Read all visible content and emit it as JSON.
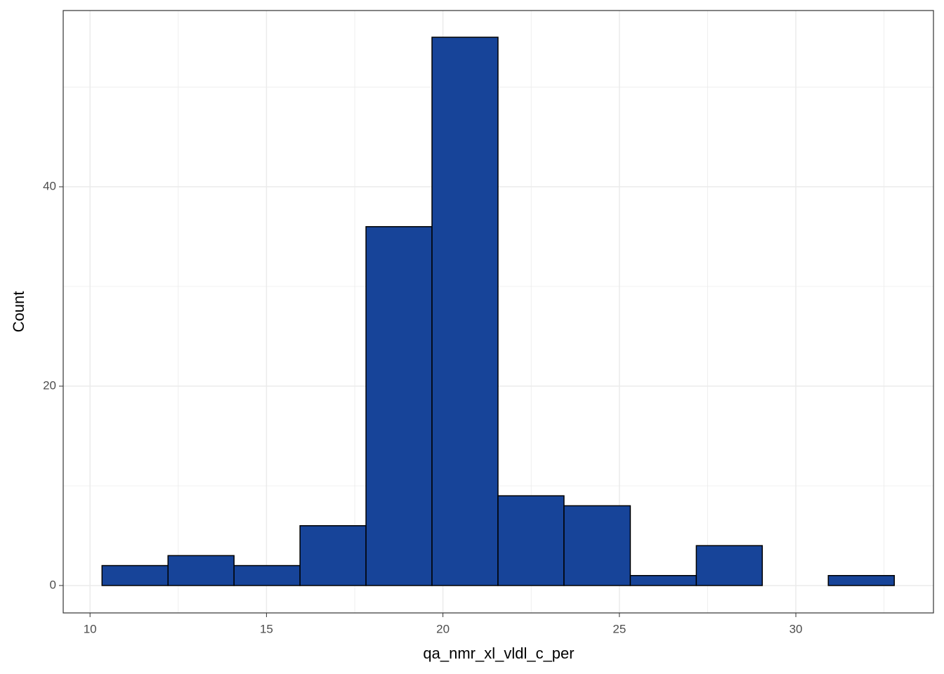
{
  "chart_data": {
    "type": "histogram",
    "x_label": "qa_nmr_xl_vldl_c_per",
    "y_label": "Count",
    "bins": [
      10.34,
      12.21,
      14.08,
      15.95,
      17.82,
      19.69,
      21.56,
      23.43,
      25.31,
      27.18,
      29.05,
      30.92,
      32.79
    ],
    "values": [
      2,
      3,
      2,
      6,
      36,
      55,
      9,
      8,
      1,
      4,
      0,
      1
    ],
    "color": "#174499",
    "edge_color": "#000000",
    "xlim": [
      9.24,
      33.9
    ],
    "ylim": [
      -2.75,
      57.68
    ],
    "xticks": [
      10,
      15,
      20,
      25,
      30
    ],
    "yticks": [
      0,
      20,
      40
    ],
    "x_minor_ticks": [
      12.5,
      17.5,
      22.5,
      27.5,
      32.5
    ],
    "y_minor_ticks": [
      10,
      30,
      50
    ],
    "grid": true
  }
}
